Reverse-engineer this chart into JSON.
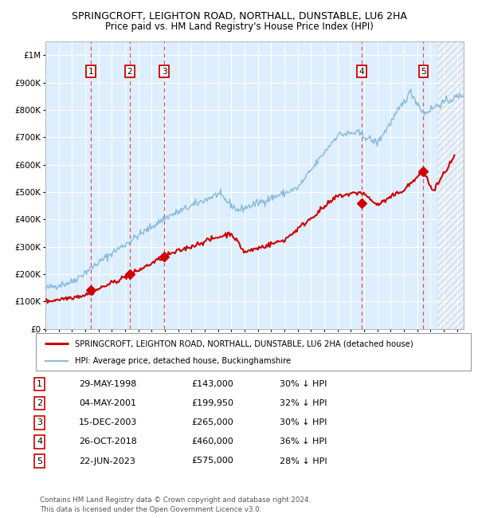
{
  "title": "SPRINGCROFT, LEIGHTON ROAD, NORTHALL, DUNSTABLE, LU6 2HA",
  "subtitle": "Price paid vs. HM Land Registry's House Price Index (HPI)",
  "legend_label_red": "SPRINGCROFT, LEIGHTON ROAD, NORTHALL, DUNSTABLE, LU6 2HA (detached house)",
  "legend_label_blue": "HPI: Average price, detached house, Buckinghamshire",
  "footer1": "Contains HM Land Registry data © Crown copyright and database right 2024.",
  "footer2": "This data is licensed under the Open Government Licence v3.0.",
  "transactions": [
    {
      "num": 1,
      "date": "29-MAY-1998",
      "price": 143000,
      "hpi_pct": "30% ↓ HPI",
      "year": 1998.41
    },
    {
      "num": 2,
      "date": "04-MAY-2001",
      "price": 199950,
      "hpi_pct": "32% ↓ HPI",
      "year": 2001.34
    },
    {
      "num": 3,
      "date": "15-DEC-2003",
      "price": 265000,
      "hpi_pct": "30% ↓ HPI",
      "year": 2003.96
    },
    {
      "num": 4,
      "date": "26-OCT-2018",
      "price": 460000,
      "hpi_pct": "36% ↓ HPI",
      "year": 2018.82
    },
    {
      "num": 5,
      "date": "22-JUN-2023",
      "price": 575000,
      "hpi_pct": "28% ↓ HPI",
      "year": 2023.47
    }
  ],
  "xlim": [
    1995.0,
    2026.5
  ],
  "ylim": [
    0,
    1050000
  ],
  "yticks": [
    0,
    100000,
    200000,
    300000,
    400000,
    500000,
    600000,
    700000,
    800000,
    900000,
    1000000
  ],
  "ytick_labels": [
    "£0",
    "£100K",
    "£200K",
    "£300K",
    "£400K",
    "£500K",
    "£600K",
    "£700K",
    "£800K",
    "£900K",
    "£1M"
  ],
  "xticks": [
    1995,
    1996,
    1997,
    1998,
    1999,
    2000,
    2001,
    2002,
    2003,
    2004,
    2005,
    2006,
    2007,
    2008,
    2009,
    2010,
    2011,
    2012,
    2013,
    2014,
    2015,
    2016,
    2017,
    2018,
    2019,
    2020,
    2021,
    2022,
    2023,
    2024,
    2025,
    2026
  ],
  "plot_bg": "#ddeeff",
  "grid_color": "#ffffff",
  "red_line_color": "#cc0000",
  "blue_line_color": "#88bbdd",
  "dashed_color": "#ee3333",
  "hatch_start": 2024.5
}
